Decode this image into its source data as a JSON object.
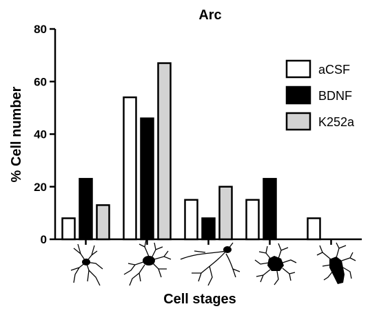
{
  "chart_data": {
    "type": "bar",
    "title": "Arc",
    "xlabel": "Cell stages",
    "ylabel": "% Cell number",
    "ylim": [
      0,
      80
    ],
    "yticks": [
      0,
      20,
      40,
      60,
      80
    ],
    "categories": [
      "",
      "",
      "",
      "",
      ""
    ],
    "category_icons": [
      "neuron-stage-1-icon",
      "neuron-stage-2-icon",
      "neuron-stage-3-icon",
      "neuron-stage-4-icon",
      "neuron-stage-5-icon"
    ],
    "series": [
      {
        "name": "aCSF",
        "color": "#ffffff",
        "values": [
          8,
          54,
          15,
          15,
          8
        ]
      },
      {
        "name": "BDNF",
        "color": "#000000",
        "values": [
          23,
          46,
          8,
          23,
          0
        ]
      },
      {
        "name": "K252a",
        "color": "#d3d3d3",
        "values": [
          13,
          67,
          20,
          0,
          0
        ]
      }
    ],
    "legend_position": "top-right",
    "grid": false
  }
}
